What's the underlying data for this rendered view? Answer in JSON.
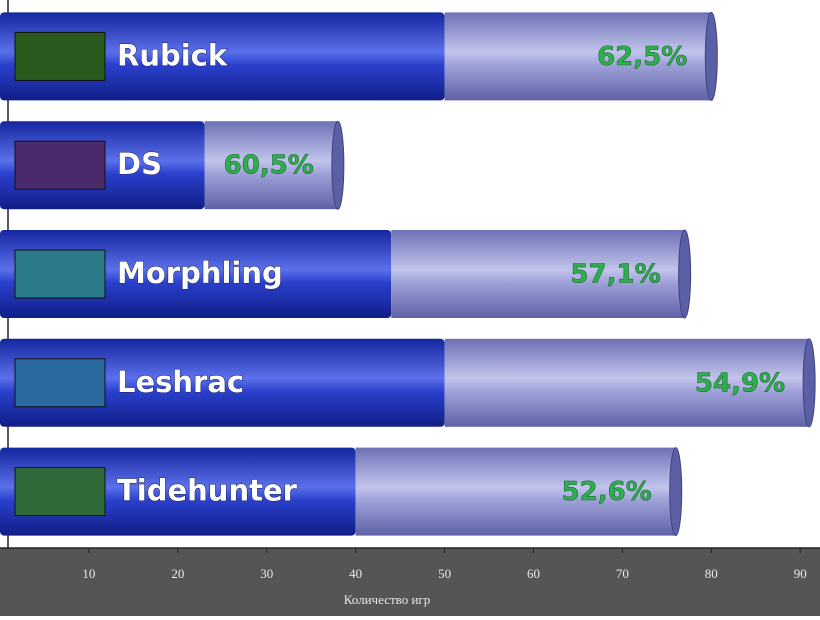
{
  "chart_data": {
    "type": "stacked-barh",
    "categories": [
      "Rubick",
      "DS",
      "Morphling",
      "Leshrac",
      "Tidehunter"
    ],
    "series": [
      {
        "color": "#1f36c4",
        "values": [
          50,
          23,
          44,
          50,
          40
        ]
      },
      {
        "color": "#8b8fcf",
        "values": [
          30,
          15,
          33,
          41,
          36
        ]
      }
    ],
    "win_rate": {
      "values": [
        62.5,
        60.5,
        57.1,
        54.9,
        52.6
      ],
      "value_labels": [
        "62,5%",
        "60,5%",
        "57,1%",
        "54,9%",
        "52,6%"
      ]
    },
    "xlabel": "Количество игр",
    "xlim": [
      0,
      92
    ],
    "xticks": [
      10,
      20,
      30,
      40,
      50,
      60,
      70,
      80,
      90
    ]
  }
}
